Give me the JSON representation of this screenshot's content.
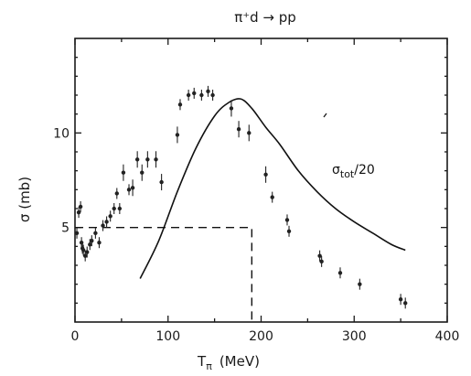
{
  "chart_data": {
    "type": "scatter",
    "title": "π⁺d → pp",
    "xlabel_main": "T",
    "xlabel_sub": "π",
    "xlabel_unit": "(MeV)",
    "ylabel": "σ (mb)",
    "xlim": [
      0,
      400
    ],
    "ylim": [
      0,
      15
    ],
    "xticks": [
      0,
      100,
      200,
      300,
      400
    ],
    "yticks": [
      5,
      10
    ],
    "grid": false,
    "series": [
      {
        "type": "scatter",
        "x": [
          2,
          4,
          6,
          7,
          8,
          9,
          11,
          13,
          16,
          18,
          22,
          26,
          30,
          34,
          38,
          42,
          45,
          48,
          52,
          58,
          62,
          67,
          72,
          78,
          87,
          93,
          110,
          113,
          122,
          128,
          136,
          143,
          148,
          168,
          176,
          187,
          205,
          212,
          228,
          230,
          263,
          265,
          285,
          306,
          350,
          355
        ],
        "y": [
          4.7,
          5.8,
          6.1,
          4.2,
          3.9,
          3.8,
          3.5,
          3.7,
          4.1,
          4.3,
          4.7,
          4.2,
          5.1,
          5.3,
          5.6,
          6.0,
          6.8,
          6.0,
          7.9,
          7.0,
          7.1,
          8.6,
          7.9,
          8.6,
          8.6,
          7.4,
          9.9,
          11.5,
          12.0,
          12.1,
          12.0,
          12.2,
          12.0,
          11.3,
          10.2,
          10.0,
          7.8,
          6.6,
          5.4,
          4.8,
          3.5,
          3.2,
          2.6,
          2.0,
          1.2,
          1.0
        ]
      },
      {
        "type": "line",
        "x": [
          70,
          90,
          110,
          130,
          150,
          165,
          178,
          190,
          205,
          220,
          240,
          260,
          280,
          300,
          320,
          340,
          355
        ],
        "y": [
          2.3,
          4.3,
          6.9,
          9.2,
          10.9,
          11.6,
          11.8,
          11.3,
          10.3,
          9.4,
          8.0,
          6.9,
          6.0,
          5.3,
          4.7,
          4.1,
          3.8
        ]
      },
      {
        "type": "dashed",
        "x": [
          0,
          190,
          190
        ],
        "y": [
          5,
          5,
          0
        ]
      }
    ],
    "annotations": [
      {
        "label_main": "σ",
        "label_sub": "tot",
        "label_rest": "/20",
        "x": 270,
        "y": 8.9
      }
    ]
  }
}
